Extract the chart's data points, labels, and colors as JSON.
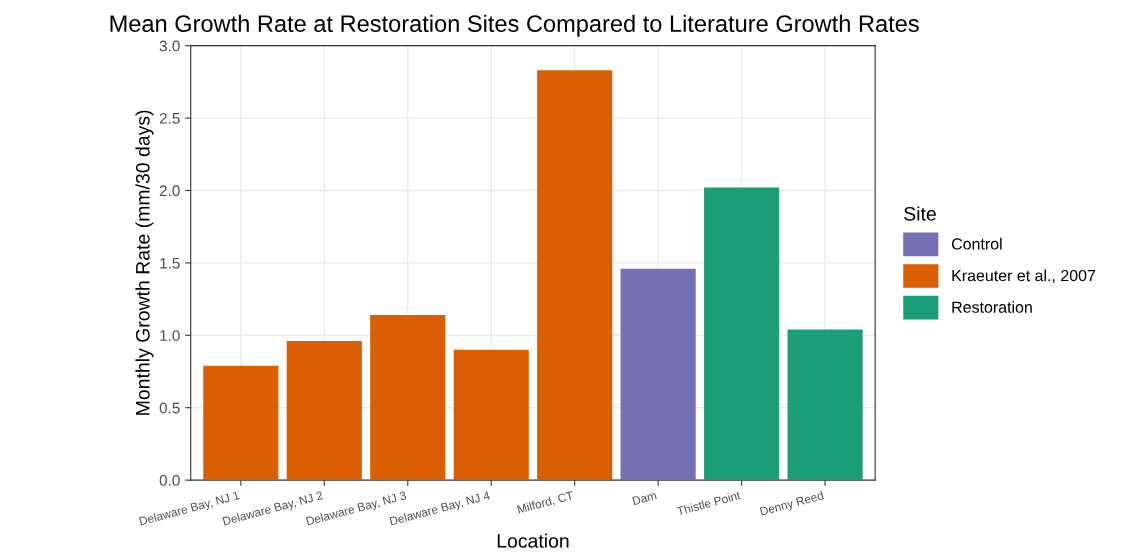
{
  "chart_data": {
    "type": "bar",
    "title": "Mean Growth Rate at Restoration Sites Compared to Literature Growth Rates",
    "xlabel": "Location",
    "ylabel": "Monthly Growth Rate (mm/30 days)",
    "legend_title": "Site",
    "categories": [
      "Delaware Bay, NJ 1",
      "Delaware Bay, NJ 2",
      "Delaware Bay, NJ 3",
      "Delaware Bay, NJ 4",
      "Milford, CT",
      "Dam",
      "Thistle Point",
      "Denny Reed"
    ],
    "series": [
      {
        "name": "Control",
        "color": "#7570b3",
        "values": [
          null,
          null,
          null,
          null,
          null,
          1.46,
          null,
          null
        ]
      },
      {
        "name": "Kraeuter et al., 2007",
        "color": "#d95f02",
        "values": [
          0.79,
          0.96,
          1.14,
          0.9,
          2.83,
          null,
          null,
          null
        ]
      },
      {
        "name": "Restoration",
        "color": "#1b9e77",
        "values": [
          null,
          null,
          null,
          null,
          null,
          null,
          2.02,
          1.04
        ]
      }
    ],
    "ylim": [
      0,
      3.0
    ],
    "yticks": [
      {
        "value": 0,
        "label": "0.0"
      },
      {
        "value": 0.5,
        "label": "0.5"
      },
      {
        "value": 1,
        "label": "1.0"
      },
      {
        "value": 1.5,
        "label": "1.5"
      },
      {
        "value": 2,
        "label": "2.0"
      },
      {
        "value": 2.5,
        "label": "2.5"
      },
      {
        "value": 3,
        "label": "3.0"
      }
    ],
    "grid": true,
    "legend": "right"
  }
}
